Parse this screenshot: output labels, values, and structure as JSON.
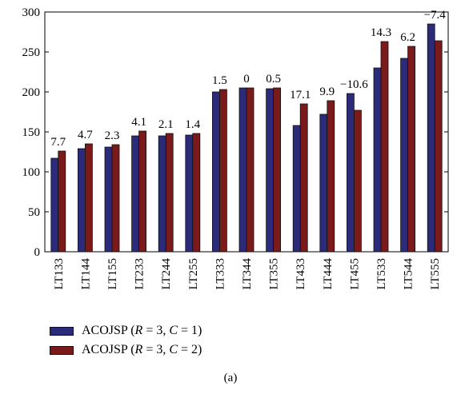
{
  "chart_data": {
    "type": "bar",
    "categories": [
      "LT133",
      "LT144",
      "LT155",
      "LT233",
      "LT244",
      "LT255",
      "LT333",
      "LT344",
      "LT355",
      "LT433",
      "LT444",
      "LT455",
      "LT533",
      "LT544",
      "LT555"
    ],
    "series": [
      {
        "name": "ACOJSP (R = 3, C = 1)",
        "color": "#2b2b7a",
        "values": [
          117,
          129,
          131,
          145,
          145,
          146,
          200,
          205,
          204,
          158,
          172,
          198,
          230,
          242,
          285
        ]
      },
      {
        "name": "ACOJSP (R = 3, C = 2)",
        "color": "#7a1a1a",
        "values": [
          126,
          135,
          134,
          151,
          148,
          148,
          203,
          205,
          205,
          185,
          189,
          177,
          263,
          257,
          264
        ]
      }
    ],
    "data_labels": [
      "7.7",
      "4.7",
      "2.3",
      "4.1",
      "2.1",
      "1.4",
      "1.5",
      "0",
      "0.5",
      "17.1",
      "9.9",
      "−10.6",
      "14.3",
      "6.2",
      "−7.4"
    ],
    "yticks": [
      "0",
      "50",
      "100",
      "150",
      "200",
      "250",
      "300"
    ],
    "ylim": [
      0,
      300
    ],
    "grid": false,
    "legend_position": "bottom-left"
  },
  "legend": {
    "items": [
      {
        "prefix": "ACOJSP (",
        "v1": "R",
        "mid": " = 3, ",
        "v2": "C",
        "suffix": " = 1)",
        "color": "#2b2b7a"
      },
      {
        "prefix": "ACOJSP (",
        "v1": "R",
        "mid": " = 3, ",
        "v2": "C",
        "suffix": " = 2)",
        "color": "#7a1a1a"
      }
    ]
  },
  "panel_label": "(a)"
}
